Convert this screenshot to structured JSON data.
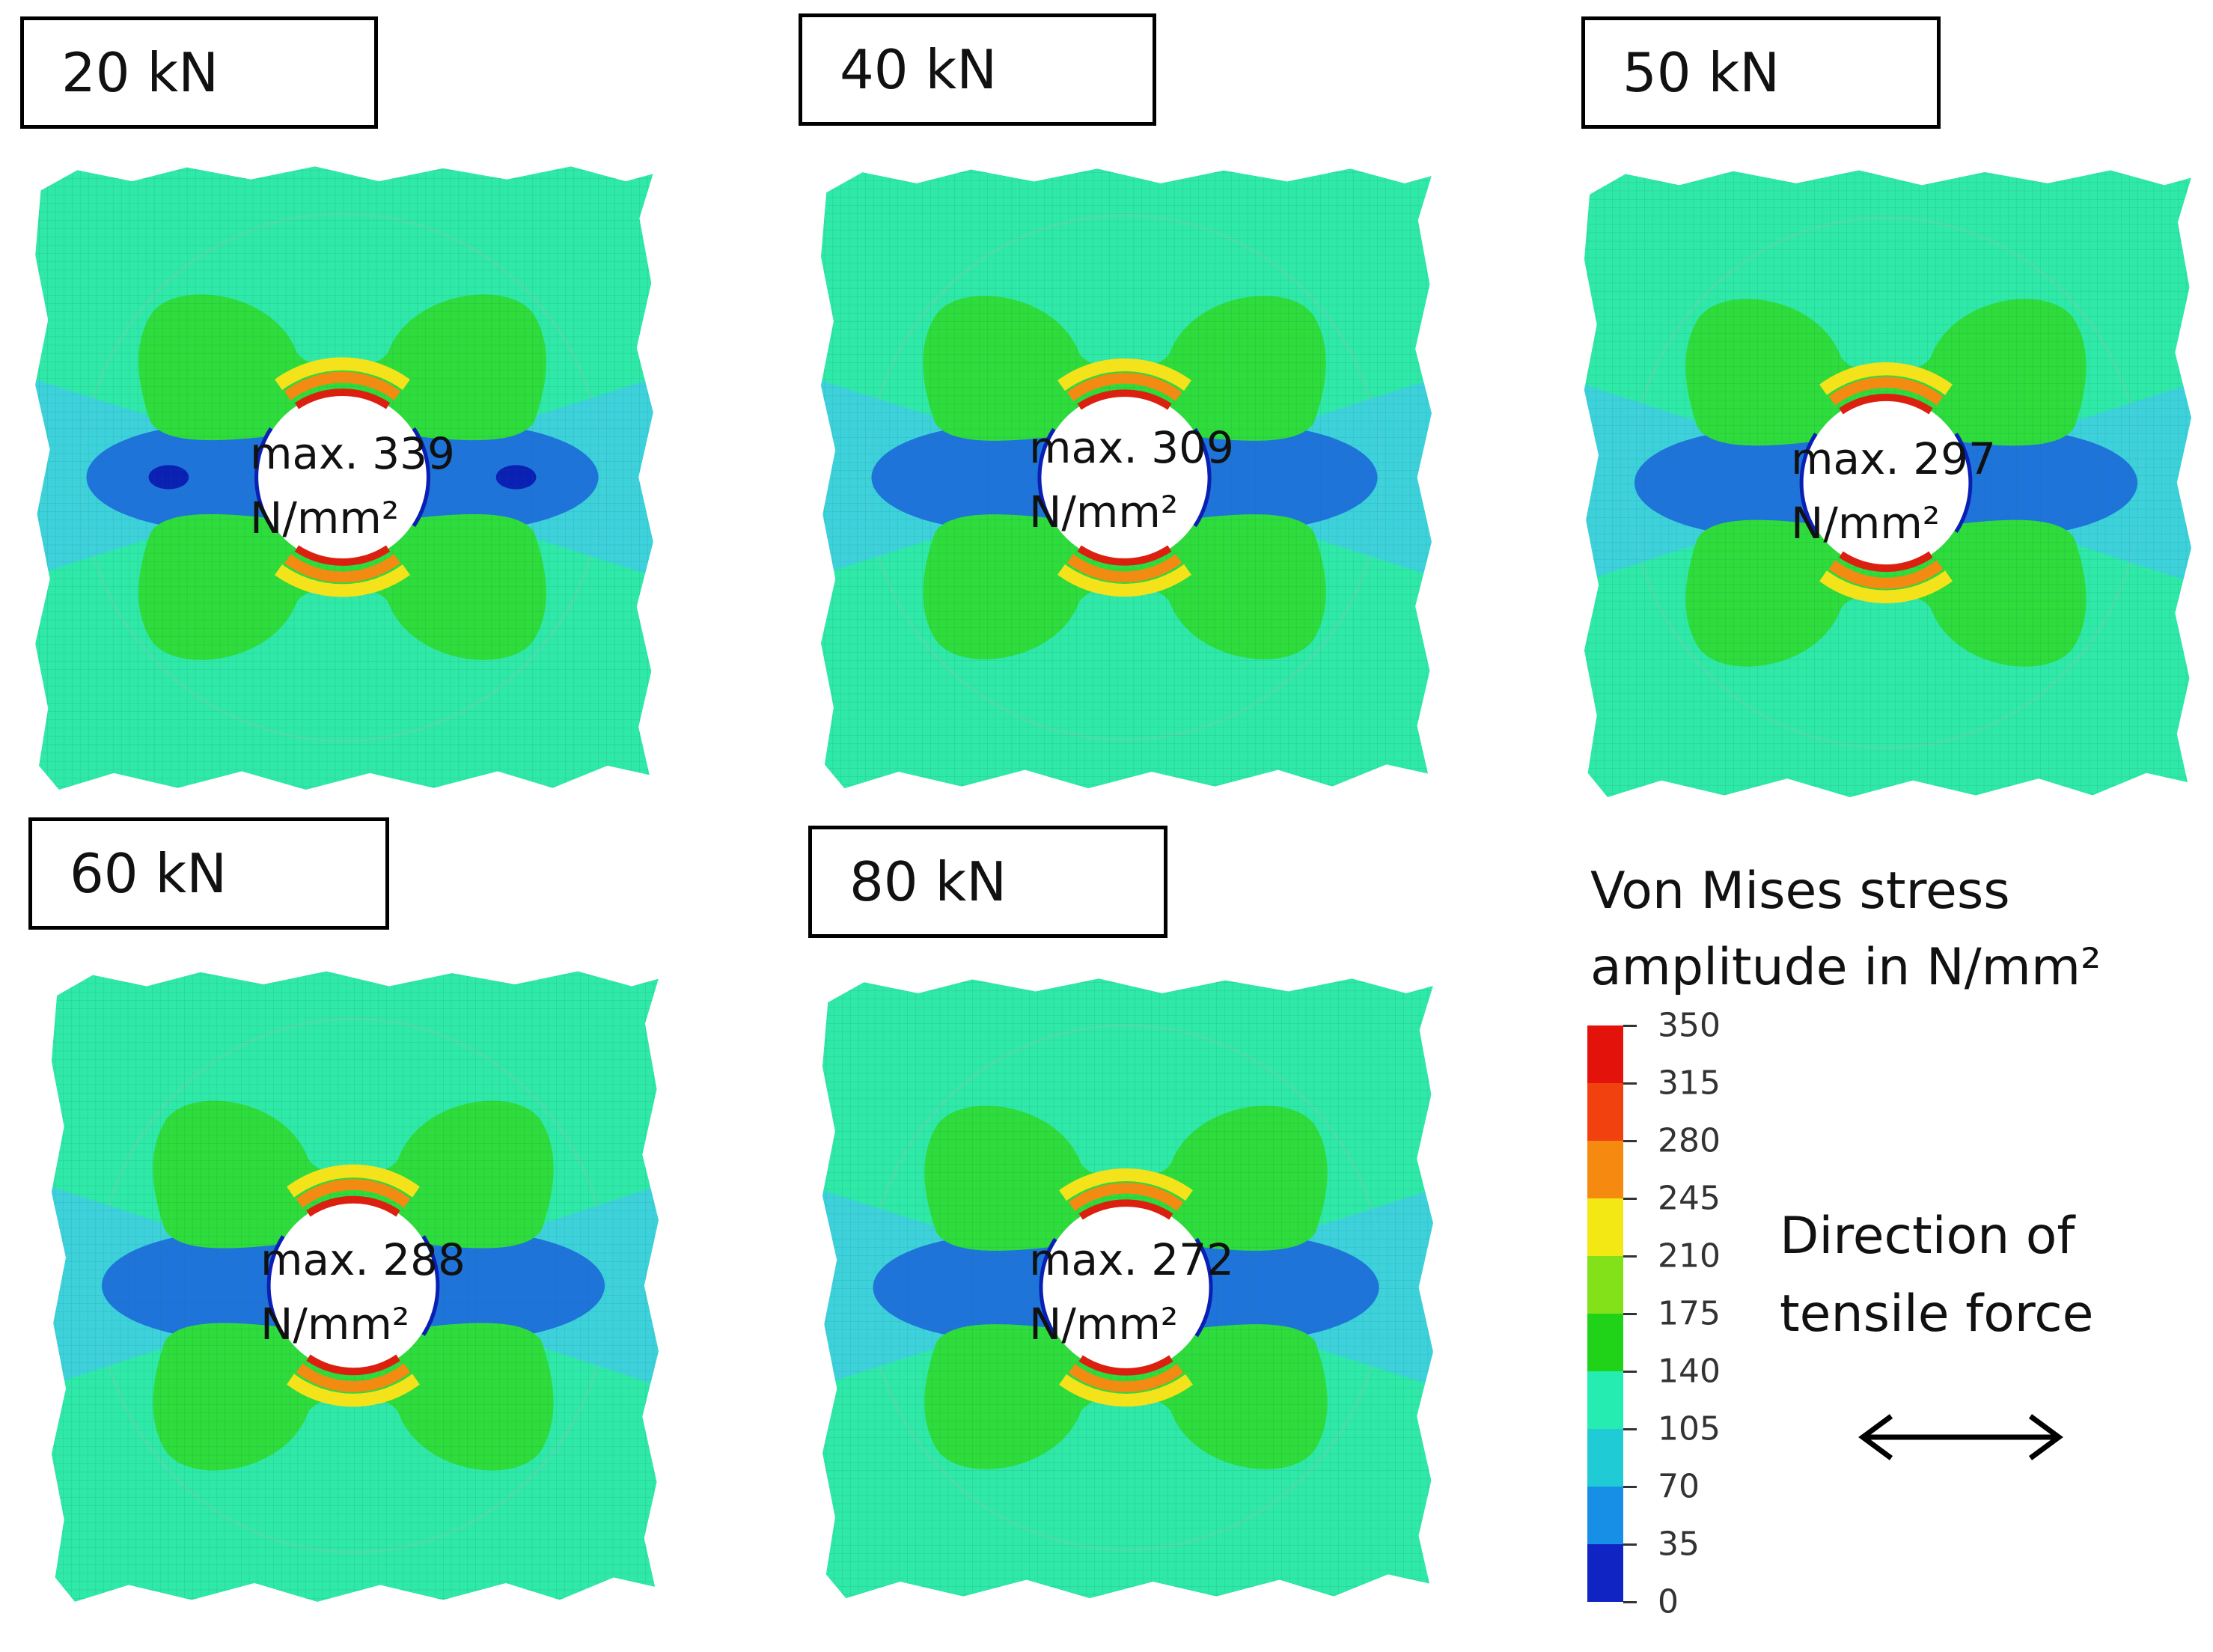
{
  "panels": [
    {
      "force": "20 kN",
      "max_value": "max. 339",
      "unit": "N/mm²"
    },
    {
      "force": "40 kN",
      "max_value": "max. 309",
      "unit": "N/mm²"
    },
    {
      "force": "50 kN",
      "max_value": "max. 297",
      "unit": "N/mm²"
    },
    {
      "force": "60 kN",
      "max_value": "max. 288",
      "unit": "N/mm²"
    },
    {
      "force": "80 kN",
      "max_value": "max. 272",
      "unit": "N/mm²"
    }
  ],
  "legend": {
    "title_line1": "Von Mises stress",
    "title_line2": "amplitude in N/mm²",
    "ticks": [
      "350",
      "315",
      "280",
      "245",
      "210",
      "175",
      "140",
      "105",
      "70",
      "35",
      "0"
    ],
    "colors": [
      "#e3130c",
      "#f0410f",
      "#f68a10",
      "#f3e714",
      "#82e119",
      "#21d318",
      "#25ecb0",
      "#1fcbd5",
      "#188fe6",
      "#0f24c2"
    ]
  },
  "direction": {
    "line1": "Direction of",
    "line2": "tensile force",
    "arrow_icon": "double-headed-arrow"
  },
  "colors": {
    "base": "#2fe9a8",
    "green": "#2edc3c",
    "cyan": "#3fcfe0",
    "blue": "#1f74dc",
    "darkblue": "#0a1fb4",
    "red": "#dc2010",
    "orange": "#f38a12",
    "yellow": "#f4e21a"
  }
}
